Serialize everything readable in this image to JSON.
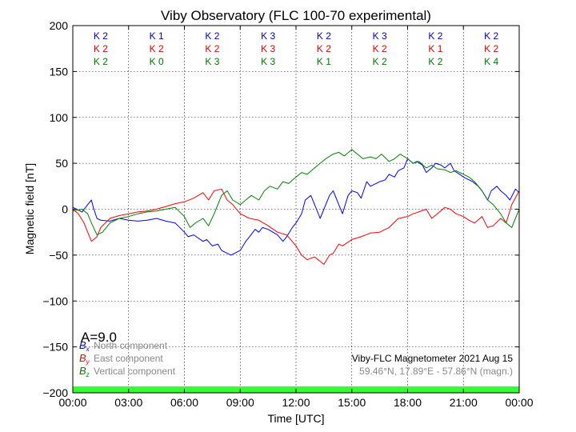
{
  "chart_data": {
    "type": "line",
    "title": "Viby Observatory (FLC 100-70 experimental)",
    "xlabel": "Time [UTC]",
    "ylabel": "Magnetic field [nT]",
    "xlim": [
      0,
      24
    ],
    "ylim": [
      -200,
      200
    ],
    "grid": true,
    "x_ticks": [
      {
        "value": 0,
        "label": "00:00"
      },
      {
        "value": 3,
        "label": "03:00"
      },
      {
        "value": 6,
        "label": "06:00"
      },
      {
        "value": 9,
        "label": "09:00"
      },
      {
        "value": 12,
        "label": "12:00"
      },
      {
        "value": 15,
        "label": "15:00"
      },
      {
        "value": 18,
        "label": "18:00"
      },
      {
        "value": 21,
        "label": "21:00"
      },
      {
        "value": 24,
        "label": "00:00"
      }
    ],
    "y_ticks": [
      {
        "value": 200,
        "label": "200"
      },
      {
        "value": 150,
        "label": "150"
      },
      {
        "value": 100,
        "label": "100"
      },
      {
        "value": 50,
        "label": "50"
      },
      {
        "value": 0,
        "label": "0"
      },
      {
        "value": -50,
        "label": "−50"
      },
      {
        "value": -100,
        "label": "−100"
      },
      {
        "value": -150,
        "label": "−150"
      },
      {
        "value": -200,
        "label": "−200"
      }
    ],
    "k_index": {
      "x": [
        1.5,
        4.5,
        7.5,
        10.5,
        13.5,
        16.5,
        19.5,
        22.5
      ],
      "rows": [
        {
          "component": "Bx",
          "color": "#0000cc",
          "labels": [
            "K 2",
            "K 1",
            "K 2",
            "K 3",
            "K 2",
            "K 3",
            "K 2",
            "K 2"
          ]
        },
        {
          "component": "By",
          "color": "#dd0000",
          "labels": [
            "K 2",
            "K 2",
            "K 2",
            "K 3",
            "K 2",
            "K 2",
            "K 1",
            "K 2"
          ]
        },
        {
          "component": "Bz",
          "color": "#007700",
          "labels": [
            "K 2",
            "K 0",
            "K 3",
            "K 3",
            "K 1",
            "K 2",
            "K 2",
            "K 4"
          ]
        }
      ]
    },
    "series": [
      {
        "name": "North component",
        "symbol": "Bx",
        "color": "#0000ff",
        "x": [
          0,
          0.5,
          0.8,
          1,
          1.1,
          1.3,
          1.5,
          2,
          2.5,
          3,
          3.5,
          4,
          4.5,
          5,
          5.5,
          6,
          6.2,
          6.5,
          7,
          7.2,
          7.5,
          7.8,
          8,
          8.5,
          9,
          9.3,
          9.5,
          9.8,
          10,
          10.2,
          10.5,
          11,
          11.3,
          11.5,
          11.8,
          12,
          12.3,
          12.5,
          12.8,
          13,
          13.3,
          13.5,
          13.8,
          14,
          14.3,
          14.5,
          14.8,
          15,
          15.3,
          15.5,
          15.8,
          16,
          16.3,
          16.5,
          16.8,
          17,
          17.3,
          17.5,
          17.8,
          18,
          18.3,
          18.5,
          18.8,
          19,
          19.3,
          19.5,
          19.8,
          20,
          20.3,
          20.5,
          20.8,
          21,
          21.3,
          21.5,
          21.8,
          22,
          22.3,
          22.5,
          22.8,
          23,
          23.3,
          23.5,
          23.8,
          24
        ],
        "y": [
          2,
          -3,
          5,
          10,
          2,
          -10,
          -12,
          -13,
          -10,
          -12,
          -13,
          -12,
          -10,
          -13,
          -15,
          -25,
          -30,
          -28,
          -35,
          -33,
          -40,
          -38,
          -45,
          -50,
          -45,
          -35,
          -30,
          -22,
          -25,
          -20,
          -22,
          -28,
          -35,
          -30,
          -20,
          -15,
          -5,
          10,
          15,
          5,
          -10,
          0,
          15,
          20,
          5,
          -5,
          15,
          20,
          18,
          12,
          30,
          25,
          28,
          30,
          32,
          38,
          35,
          42,
          45,
          55,
          50,
          52,
          48,
          40,
          45,
          50,
          48,
          45,
          50,
          42,
          38,
          35,
          32,
          30,
          25,
          20,
          10,
          20,
          25,
          20,
          15,
          10,
          22,
          18
        ]
      },
      {
        "name": "East component",
        "symbol": "By",
        "color": "#ff0000",
        "x": [
          0,
          0.3,
          0.6,
          0.8,
          1,
          1.3,
          1.5,
          2,
          2.5,
          3,
          3.5,
          4,
          4.5,
          5,
          5.5,
          6,
          6.5,
          7,
          7.3,
          7.6,
          8,
          8.3,
          8.6,
          9,
          9.5,
          10,
          10.5,
          11,
          11.5,
          12,
          12.3,
          12.6,
          13,
          13.5,
          13.8,
          14,
          14.3,
          14.5,
          15,
          15.5,
          16,
          16.5,
          17,
          17.5,
          18,
          18.3,
          18.6,
          19,
          19.3,
          19.6,
          20,
          20.3,
          20.6,
          21,
          21.3,
          21.6,
          22,
          22.3,
          22.6,
          23,
          23.3,
          23.6,
          24
        ],
        "y": [
          0,
          -5,
          -15,
          -25,
          -35,
          -30,
          -20,
          -10,
          -7,
          -5,
          -3,
          -2,
          0,
          3,
          6,
          8,
          12,
          18,
          10,
          20,
          22,
          10,
          5,
          -5,
          -10,
          -12,
          -18,
          -25,
          -28,
          -40,
          -50,
          -55,
          -52,
          -60,
          -50,
          -48,
          -38,
          -40,
          -33,
          -30,
          -26,
          -25,
          -20,
          -10,
          -8,
          -5,
          -3,
          0,
          -10,
          -5,
          2,
          0,
          -5,
          -8,
          -12,
          -15,
          -8,
          -20,
          -18,
          -10,
          -15,
          5,
          20
        ]
      },
      {
        "name": "Vertical component",
        "symbol": "Bz",
        "color": "#008000",
        "x": [
          0,
          0.5,
          0.8,
          1,
          1.3,
          1.6,
          2,
          2.5,
          3,
          3.5,
          4,
          4.5,
          5,
          5.5,
          6,
          6.3,
          6.6,
          7,
          7.3,
          7.6,
          8,
          8.3,
          8.6,
          9,
          9.3,
          9.6,
          10,
          10.3,
          10.6,
          11,
          11.3,
          11.6,
          12,
          12.3,
          12.6,
          13,
          13.3,
          13.6,
          14,
          14.3,
          14.6,
          15,
          15.3,
          15.6,
          16,
          16.3,
          16.6,
          17,
          17.3,
          17.6,
          18,
          18.3,
          18.6,
          19,
          19.3,
          19.6,
          20,
          20.3,
          20.6,
          21,
          21.3,
          21.6,
          22,
          22.3,
          22.6,
          23,
          23.3,
          23.6,
          24
        ],
        "y": [
          -2,
          0,
          -5,
          -15,
          -28,
          -25,
          -15,
          -10,
          -8,
          -5,
          -3,
          -2,
          0,
          2,
          -8,
          -20,
          -15,
          -10,
          -18,
          -5,
          15,
          20,
          10,
          5,
          10,
          15,
          10,
          20,
          25,
          22,
          30,
          28,
          35,
          40,
          38,
          45,
          50,
          55,
          60,
          62,
          58,
          65,
          60,
          55,
          57,
          55,
          60,
          52,
          55,
          60,
          55,
          50,
          52,
          45,
          48,
          44,
          43,
          40,
          42,
          38,
          35,
          30,
          20,
          10,
          5,
          -5,
          -15,
          -20,
          0
        ]
      }
    ],
    "legend": {
      "placement": "lower-left",
      "index_label": "A=9.0",
      "items": [
        {
          "symbol_base": "B",
          "symbol_sub": "x",
          "label": "North component",
          "color": "#0000ff"
        },
        {
          "symbol_base": "B",
          "symbol_sub": "y",
          "label": "East component",
          "color": "#ff0000"
        },
        {
          "symbol_base": "B",
          "symbol_sub": "z",
          "label": "Vertical component",
          "color": "#008000"
        }
      ]
    },
    "info": {
      "title": "Viby-FLC Magnetometer 2021 Aug 15",
      "coords": "59.46°N, 17.89°E - 57.86°N (magn.)"
    },
    "status_bar_color": "#33ff33"
  }
}
